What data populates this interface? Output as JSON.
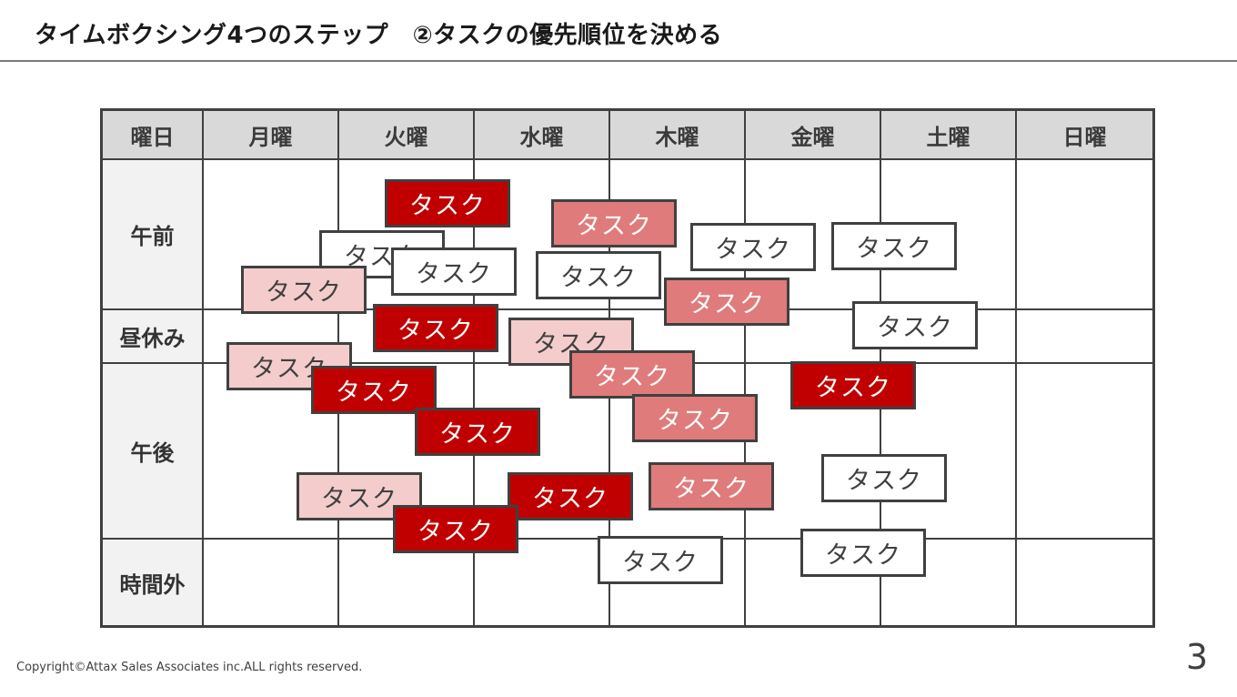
{
  "title": "タイムボクシング4つのステップ　②タスクの優先順位を決める",
  "table": {
    "corner": "曜日",
    "days": [
      "月曜",
      "火曜",
      "水曜",
      "木曜",
      "金曜",
      "土曜",
      "日曜"
    ],
    "rows": [
      "午前",
      "昼休み",
      "午後",
      "時間外"
    ]
  },
  "priority_colors": {
    "p1": "#c00000",
    "p2": "#e07b7b",
    "p3": "#f4cccc",
    "p4": "#ffffff"
  },
  "tasks": [
    {
      "label": "タスク",
      "priority": "p4"
    },
    {
      "label": "タスク",
      "priority": "p4"
    },
    {
      "label": "タスク",
      "priority": "p3"
    },
    {
      "label": "タスク",
      "priority": "p3"
    },
    {
      "label": "タスク",
      "priority": "p4"
    },
    {
      "label": "タスク",
      "priority": "p4"
    },
    {
      "label": "タスク",
      "priority": "p3"
    },
    {
      "label": "タスク",
      "priority": "p4"
    },
    {
      "label": "タスク",
      "priority": "p4"
    },
    {
      "label": "タスク",
      "priority": "p4"
    },
    {
      "label": "タスク",
      "priority": "p3"
    },
    {
      "label": "タスク",
      "priority": "p4"
    },
    {
      "label": "タスク",
      "priority": "p4"
    },
    {
      "label": "タスク",
      "priority": "p2"
    },
    {
      "label": "タスク",
      "priority": "p2"
    },
    {
      "label": "タスク",
      "priority": "p2"
    },
    {
      "label": "タスク",
      "priority": "p2"
    },
    {
      "label": "タスク",
      "priority": "p2"
    },
    {
      "label": "タスク",
      "priority": "p1"
    },
    {
      "label": "タスク",
      "priority": "p1"
    },
    {
      "label": "タスク",
      "priority": "p1"
    },
    {
      "label": "タスク",
      "priority": "p1"
    },
    {
      "label": "タスク",
      "priority": "p1"
    },
    {
      "label": "タスク",
      "priority": "p1"
    },
    {
      "label": "タスク",
      "priority": "p1"
    }
  ],
  "footer": {
    "copyright": "Copyright©Attax Sales Associates inc.ALL rights reserved.",
    "page_number": "3"
  }
}
